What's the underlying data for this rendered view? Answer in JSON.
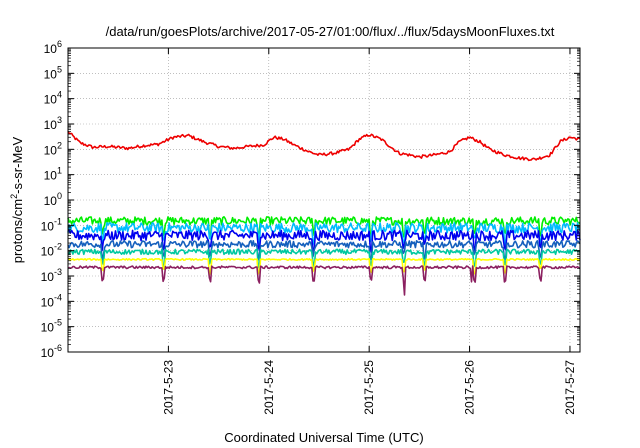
{
  "chart_data": {
    "type": "line",
    "title": "/data/run/goesPlots/archive/2017-05-27/01:00/flux/../flux/5daysMoonFluxes.txt",
    "xlabel": "Coordinated Universal Time (UTC)",
    "ylabel_main": "protons/cm",
    "ylabel_sup": "2",
    "ylabel_rest": "-s-sr-MeV",
    "x_unit": "days",
    "x_start": "2017-05-22",
    "xlim": [
      0.0,
      5.1
    ],
    "yscale": "log",
    "ylim_exp": [
      -6,
      6
    ],
    "grid": true,
    "xticks": [
      {
        "label": "2017-5-23",
        "day": 1.0
      },
      {
        "label": "2017-5-24",
        "day": 2.0
      },
      {
        "label": "2017-5-25",
        "day": 3.0
      },
      {
        "label": "2017-5-26",
        "day": 4.0
      },
      {
        "label": "2017-5-27",
        "day": 5.0
      }
    ],
    "yticks": [
      {
        "base": "10",
        "exp": "-6",
        "value": -6
      },
      {
        "base": "10",
        "exp": "-5",
        "value": -5
      },
      {
        "base": "10",
        "exp": "-4",
        "value": -4
      },
      {
        "base": "10",
        "exp": "-3",
        "value": -3
      },
      {
        "base": "10",
        "exp": "-2",
        "value": -2
      },
      {
        "base": "10",
        "exp": "-1",
        "value": -1
      },
      {
        "base": "10",
        "exp": "0",
        "value": 0
      },
      {
        "base": "10",
        "exp": "1",
        "value": 1
      },
      {
        "base": "10",
        "exp": "2",
        "value": 2
      },
      {
        "base": "10",
        "exp": "3",
        "value": 3
      },
      {
        "base": "10",
        "exp": "4",
        "value": 4
      },
      {
        "base": "10",
        "exp": "5",
        "value": 5
      },
      {
        "base": "10",
        "exp": "6",
        "value": 6
      }
    ],
    "series": [
      {
        "color": "#ee0000",
        "base": [
          [
            0.0,
            500
          ],
          [
            0.12,
            180
          ],
          [
            0.25,
            120
          ],
          [
            0.4,
            130
          ],
          [
            0.6,
            110
          ],
          [
            0.75,
            140
          ],
          [
            0.9,
            160
          ],
          [
            1.05,
            300
          ],
          [
            1.2,
            350
          ],
          [
            1.35,
            200
          ],
          [
            1.5,
            130
          ],
          [
            1.65,
            110
          ],
          [
            1.8,
            130
          ],
          [
            1.95,
            150
          ],
          [
            2.05,
            300
          ],
          [
            2.15,
            250
          ],
          [
            2.25,
            150
          ],
          [
            2.4,
            80
          ],
          [
            2.5,
            60
          ],
          [
            2.65,
            70
          ],
          [
            2.8,
            100
          ],
          [
            2.9,
            250
          ],
          [
            3.0,
            380
          ],
          [
            3.12,
            250
          ],
          [
            3.22,
            120
          ],
          [
            3.3,
            70
          ],
          [
            3.4,
            60
          ],
          [
            3.5,
            50
          ],
          [
            3.65,
            60
          ],
          [
            3.8,
            80
          ],
          [
            3.9,
            200
          ],
          [
            4.0,
            300
          ],
          [
            4.1,
            200
          ],
          [
            4.2,
            100
          ],
          [
            4.35,
            60
          ],
          [
            4.5,
            45
          ],
          [
            4.65,
            40
          ],
          [
            4.8,
            60
          ],
          [
            4.9,
            200
          ],
          [
            5.0,
            300
          ],
          [
            5.1,
            250
          ]
        ],
        "noise": 0.06
      },
      {
        "color": "#00ee00",
        "base": [
          [
            0.0,
            0.15
          ],
          [
            5.1,
            0.15
          ]
        ],
        "noise": 0.16
      },
      {
        "color": "#00bbff",
        "base": [
          [
            0.0,
            0.08
          ],
          [
            5.1,
            0.08
          ]
        ],
        "noise": 0.2
      },
      {
        "color": "#0000ee",
        "base": [
          [
            0.0,
            0.04
          ],
          [
            5.1,
            0.04
          ]
        ],
        "noise": 0.2
      },
      {
        "color": "#1560bd",
        "base": [
          [
            0.0,
            0.018
          ],
          [
            5.1,
            0.018
          ]
        ],
        "noise": 0.14
      },
      {
        "color": "#00c8a0",
        "base": [
          [
            0.0,
            0.009
          ],
          [
            5.1,
            0.009
          ]
        ],
        "noise": 0.1
      },
      {
        "color": "#ffff00",
        "base": [
          [
            0.0,
            0.0045
          ],
          [
            5.1,
            0.0045
          ]
        ],
        "noise": 0.03
      },
      {
        "color": "#8b2060",
        "base": [
          [
            0.0,
            0.0022
          ],
          [
            5.1,
            0.0022
          ]
        ],
        "noise": 0.05
      }
    ]
  }
}
